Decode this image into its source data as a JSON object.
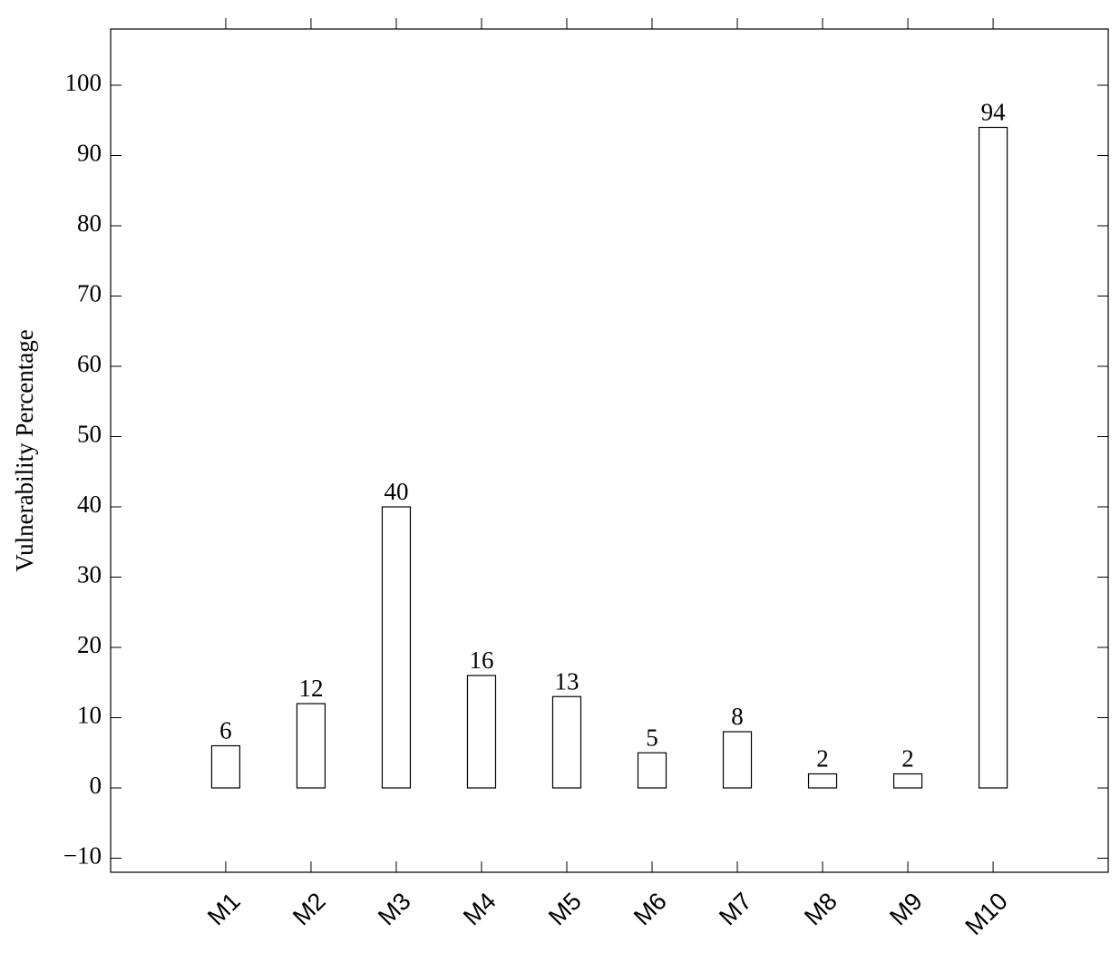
{
  "chart_data": {
    "type": "bar",
    "y_label": "Vulnerability Percentage",
    "categories": [
      "M1",
      "M2",
      "M3",
      "M4",
      "M5",
      "M6",
      "M7",
      "M8",
      "M9",
      "M10"
    ],
    "values": [
      6,
      12,
      40,
      16,
      13,
      5,
      8,
      2,
      2,
      94
    ],
    "color": "#ffffff",
    "ylim": [
      -12,
      108
    ],
    "yticks": [
      {
        "value": -10,
        "label": "−10"
      },
      0,
      10,
      20,
      30,
      40,
      50,
      60,
      70,
      80,
      90,
      100
    ],
    "grid": false
  }
}
